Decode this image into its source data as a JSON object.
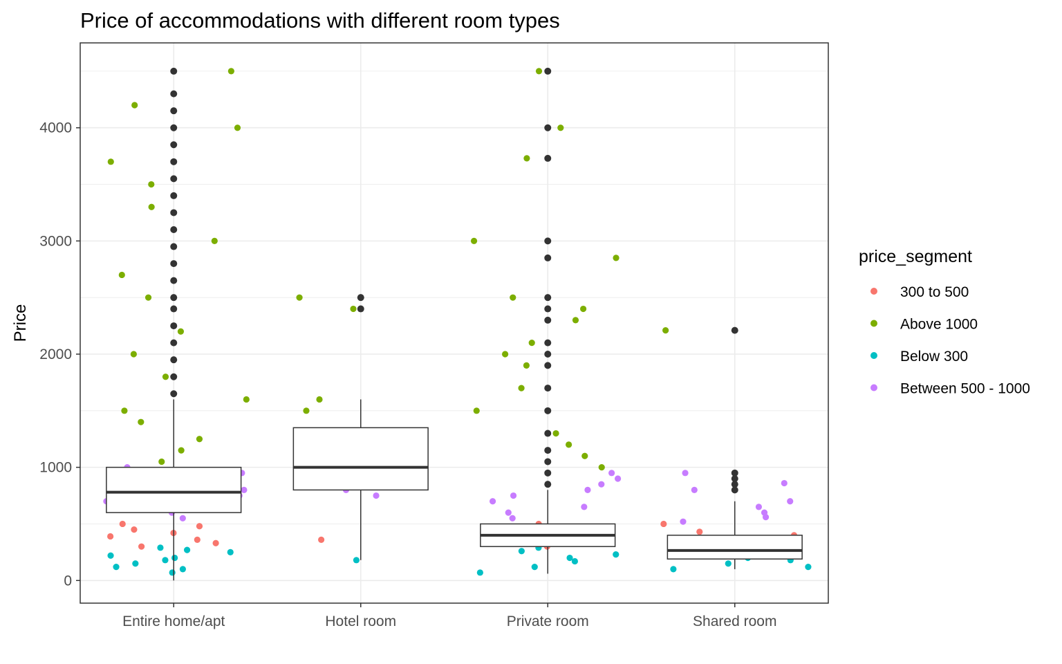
{
  "chart_data": {
    "type": "box-jitter",
    "title": "Price of accommodations with different room types",
    "xlabel": "",
    "ylabel": "Price",
    "ylim": [
      -200,
      4750
    ],
    "y_ticks": [
      0,
      1000,
      2000,
      3000,
      4000
    ],
    "categories": [
      "Entire home/apt",
      "Hotel room",
      "Private room",
      "Shared room"
    ],
    "grid": true,
    "legend_position": "right",
    "legend": {
      "title": "price_segment",
      "entries": [
        {
          "label": "300 to 500",
          "color": "#F8766D"
        },
        {
          "label": "Above 1000",
          "color": "#7CAE00"
        },
        {
          "label": "Below 300",
          "color": "#00BFC4"
        },
        {
          "label": "Between 500 - 1000",
          "color": "#C77CFF"
        }
      ]
    },
    "boxplots": [
      {
        "category": "Entire home/apt",
        "q1": 600,
        "median": 780,
        "q3": 1000,
        "whisker_low": 0,
        "whisker_high": 1600,
        "outliers": [
          1650,
          1800,
          1950,
          2100,
          2250,
          2400,
          2500,
          2650,
          2800,
          2950,
          3100,
          3250,
          3400,
          3550,
          3700,
          3850,
          4000,
          4150,
          4300,
          4500
        ]
      },
      {
        "category": "Hotel room",
        "q1": 800,
        "median": 1000,
        "q3": 1350,
        "whisker_low": 180,
        "whisker_high": 1600,
        "outliers": [
          2400,
          2500
        ]
      },
      {
        "category": "Private room",
        "q1": 300,
        "median": 400,
        "q3": 500,
        "whisker_low": 60,
        "whisker_high": 800,
        "outliers": [
          850,
          950,
          1050,
          1150,
          1300,
          1500,
          1700,
          1900,
          2000,
          2100,
          2300,
          2400,
          2500,
          2850,
          3000,
          3730,
          4000,
          4500
        ]
      },
      {
        "category": "Shared room",
        "q1": 190,
        "median": 265,
        "q3": 400,
        "whisker_low": 100,
        "whisker_high": 700,
        "outliers": [
          800,
          850,
          900,
          950,
          2210
        ]
      }
    ],
    "points": [
      {
        "category": "Entire home/apt",
        "segment": "Below 300",
        "values": [
          70,
          100,
          120,
          150,
          180,
          200,
          220,
          250,
          270,
          290
        ]
      },
      {
        "category": "Entire home/apt",
        "segment": "300 to 500",
        "values": [
          300,
          330,
          360,
          390,
          420,
          450,
          480,
          500
        ]
      },
      {
        "category": "Entire home/apt",
        "segment": "Between 500 - 1000",
        "values": [
          550,
          600,
          650,
          700,
          750,
          800,
          850,
          900,
          950,
          1000
        ]
      },
      {
        "category": "Entire home/apt",
        "segment": "Above 1000",
        "values": [
          1050,
          1150,
          1250,
          1400,
          1500,
          1600,
          1800,
          2000,
          2200,
          2500,
          2700,
          3000,
          3300,
          3500,
          3700,
          4000,
          4200,
          4500
        ]
      },
      {
        "category": "Hotel room",
        "segment": "Below 300",
        "values": [
          180
        ]
      },
      {
        "category": "Hotel room",
        "segment": "300 to 500",
        "values": [
          360
        ]
      },
      {
        "category": "Hotel room",
        "segment": "Between 500 - 1000",
        "values": [
          750,
          800,
          850
        ]
      },
      {
        "category": "Hotel room",
        "segment": "Above 1000",
        "values": [
          1000,
          1500,
          1600,
          2400,
          2500
        ]
      },
      {
        "category": "Private room",
        "segment": "Below 300",
        "values": [
          70,
          120,
          170,
          200,
          230,
          260,
          290
        ]
      },
      {
        "category": "Private room",
        "segment": "300 to 500",
        "values": [
          300,
          350,
          400,
          450,
          500
        ]
      },
      {
        "category": "Private room",
        "segment": "Between 500 - 1000",
        "values": [
          550,
          600,
          650,
          700,
          750,
          800,
          850,
          900,
          950
        ]
      },
      {
        "category": "Private room",
        "segment": "Above 1000",
        "values": [
          1000,
          1100,
          1200,
          1300,
          1500,
          1700,
          1900,
          2000,
          2100,
          2300,
          2400,
          2500,
          2850,
          3000,
          3730,
          4000,
          4500
        ]
      },
      {
        "category": "Shared room",
        "segment": "Below 300",
        "values": [
          100,
          120,
          150,
          180,
          200,
          250
        ]
      },
      {
        "category": "Shared room",
        "segment": "300 to 500",
        "values": [
          300,
          350,
          400,
          430,
          500
        ]
      },
      {
        "category": "Shared room",
        "segment": "Between 500 - 1000",
        "values": [
          520,
          560,
          600,
          650,
          700,
          800,
          860,
          950
        ]
      },
      {
        "category": "Shared room",
        "segment": "Above 1000",
        "values": [
          2210
        ]
      }
    ]
  }
}
